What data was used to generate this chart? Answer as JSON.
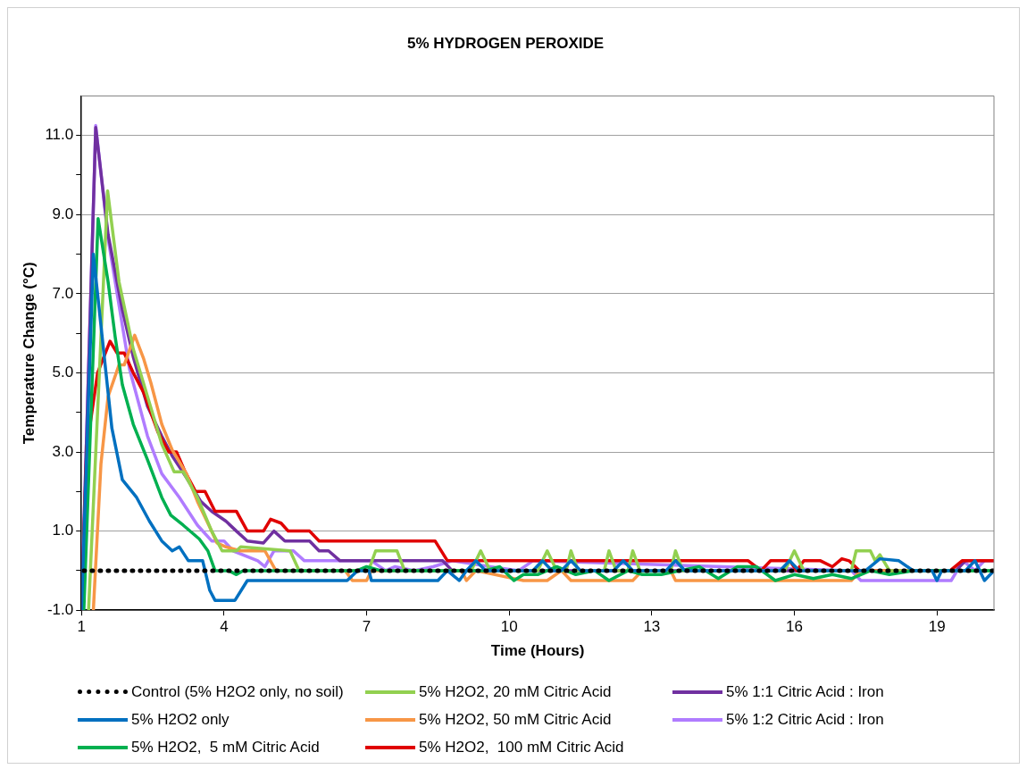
{
  "chart_data": {
    "type": "line",
    "title": "5% HYDROGEN PEROXIDE",
    "xlabel": "Time (Hours)",
    "ylabel": "Temperature Change (°C)",
    "xlim": [
      1,
      20.2
    ],
    "xticks": [
      1,
      4,
      7,
      10,
      13,
      16,
      19
    ],
    "ylim": [
      -1,
      12
    ],
    "yticks": [
      {
        "value": -1,
        "label": "-1.0"
      },
      {
        "value": 0,
        "label": null
      },
      {
        "value": 1,
        "label": "1.0"
      },
      {
        "value": 2,
        "label": null
      },
      {
        "value": 3,
        "label": "3.0"
      },
      {
        "value": 4,
        "label": null
      },
      {
        "value": 5,
        "label": "5.0"
      },
      {
        "value": 6,
        "label": null
      },
      {
        "value": 7,
        "label": "7.0"
      },
      {
        "value": 8,
        "label": null
      },
      {
        "value": 9,
        "label": "9.0"
      },
      {
        "value": 10,
        "label": null
      },
      {
        "value": 11,
        "label": "11.0"
      }
    ],
    "grid": "y",
    "legend": "bottom",
    "marker": "none",
    "series": [
      {
        "name": "Control (5% H2O2 only, no soil)",
        "color": "#000000",
        "line_style": "dotted",
        "x": [
          1.05,
          20.2
        ],
        "values": [
          0,
          0
        ]
      },
      {
        "name": "5% H2O2 only",
        "color": "#0070c0",
        "x": [
          1,
          1.25,
          1.64,
          1.86,
          2.16,
          2.43,
          2.69,
          2.91,
          3.06,
          3.25,
          3.55,
          3.7,
          3.81,
          4.23,
          4.49,
          6.59,
          6.81,
          7.05,
          7.1,
          8.5,
          8.7,
          8.95,
          9.1,
          9.3,
          9.5,
          10.5,
          10.7,
          10.9,
          11.1,
          11.3,
          11.5,
          12.2,
          12.4,
          12.6,
          13.3,
          13.5,
          13.7,
          15.7,
          15.9,
          16.1,
          17.5,
          17.8,
          18.2,
          18.5,
          18.9,
          19.0,
          19.1,
          19.6,
          19.8,
          20.0,
          20.2
        ],
        "values": [
          -1,
          8,
          3.6,
          2.3,
          1.85,
          1.25,
          0.75,
          0.5,
          0.6,
          0.25,
          0.25,
          -0.5,
          -0.75,
          -0.75,
          -0.25,
          -0.25,
          0,
          0,
          -0.25,
          -0.25,
          0,
          -0.25,
          0,
          0.25,
          0,
          0,
          0.25,
          0,
          0,
          0.25,
          0,
          0,
          0.25,
          0,
          0,
          0.25,
          0,
          0,
          0.25,
          0,
          0,
          0.3,
          0.25,
          0,
          0,
          -0.25,
          0,
          0,
          0.25,
          -0.25,
          0
        ]
      },
      {
        "name": "5% H2O2,  5 mM Citric Acid",
        "color": "#00b050",
        "x": [
          1.05,
          1.35,
          1.56,
          1.71,
          1.86,
          2.09,
          2.39,
          2.69,
          2.88,
          3.14,
          3.48,
          3.66,
          3.81,
          4.1,
          4.26,
          4.4,
          6.8,
          7.0,
          7.3,
          9.5,
          9.8,
          10.1,
          10.3,
          10.6,
          11,
          11.4,
          11.8,
          12.1,
          12.5,
          12.8,
          13.2,
          13.6,
          14,
          14.4,
          14.8,
          15.2,
          15.6,
          16.0,
          16.4,
          16.8,
          17.2,
          17.6,
          18.0,
          18.5,
          19.4,
          20.2
        ],
        "values": [
          -1,
          8.9,
          7.3,
          5.9,
          4.7,
          3.7,
          2.8,
          1.85,
          1.4,
          1.15,
          0.8,
          0.5,
          0,
          0,
          -0.1,
          0,
          0,
          0.1,
          0,
          0,
          0.1,
          -0.25,
          -0.1,
          -0.1,
          0.1,
          -0.1,
          0,
          -0.25,
          0,
          -0.1,
          -0.1,
          0,
          0.1,
          -0.2,
          0.1,
          0.1,
          -0.25,
          -0.1,
          -0.2,
          -0.1,
          -0.2,
          0,
          -0.1,
          0,
          0,
          0
        ]
      },
      {
        "name": "5% H2O2, 20 mM Citric Acid",
        "color": "#92d050",
        "x": [
          1.15,
          1.55,
          1.79,
          2.09,
          2.39,
          2.69,
          2.95,
          3.14,
          3.44,
          3.74,
          3.96,
          4.26,
          4.35,
          5.39,
          5.58,
          7.04,
          7.19,
          7.64,
          7.8,
          9.2,
          9.4,
          9.6,
          10.6,
          10.8,
          11.0,
          11.2,
          11.3,
          11.45,
          12.0,
          12.1,
          12.25,
          12.5,
          12.6,
          12.75,
          13.4,
          13.5,
          13.65,
          15.8,
          16.0,
          16.2,
          17.2,
          17.3,
          17.6,
          17.7,
          17.8,
          18.0,
          20.2
        ],
        "values": [
          -1,
          9.6,
          7.3,
          5.6,
          4.4,
          3.2,
          2.5,
          2.5,
          1.85,
          1,
          0.5,
          0.5,
          0.6,
          0.5,
          0,
          0,
          0.5,
          0.5,
          0,
          0,
          0.5,
          0,
          0,
          0.5,
          0,
          0,
          0.5,
          0,
          0,
          0.5,
          0,
          0,
          0.5,
          0,
          0,
          0.5,
          0,
          0,
          0.5,
          0,
          0,
          0.5,
          0.5,
          0.25,
          0.4,
          0,
          0
        ]
      },
      {
        "name": "5% H2O2, 50 mM Citric Acid",
        "color": "#f79646",
        "x": [
          1.25,
          1.41,
          1.56,
          1.79,
          1.9,
          2.12,
          2.31,
          2.46,
          2.69,
          2.91,
          3.21,
          3.44,
          3.7,
          3.85,
          4.04,
          4.34,
          4.86,
          5.09,
          6.55,
          6.7,
          7.0,
          7.1,
          9.0,
          9.1,
          9.3,
          10.3,
          10.8,
          11.1,
          11.3,
          11.8,
          12.6,
          12.8,
          13.4,
          13.5,
          17.2,
          17.4,
          20.2
        ],
        "values": [
          -1,
          2.7,
          4.4,
          5.2,
          5.2,
          5.95,
          5.35,
          4.75,
          3.7,
          3.05,
          2.45,
          1.75,
          1.1,
          0.7,
          0.6,
          0.5,
          0.5,
          0,
          0,
          -0.25,
          -0.25,
          0,
          0,
          -0.25,
          0,
          -0.25,
          -0.25,
          0,
          -0.25,
          -0.25,
          -0.25,
          0,
          0,
          -0.25,
          -0.25,
          0,
          0
        ]
      },
      {
        "name": "5% H2O2,  100 mM Citric Acid",
        "color": "#e00000",
        "x": [
          1,
          1.11,
          1.34,
          1.6,
          1.75,
          1.9,
          2.09,
          2.31,
          2.61,
          2.84,
          3.0,
          3.18,
          3.4,
          3.6,
          3.81,
          4.26,
          4.49,
          4.83,
          4.98,
          5.2,
          5.35,
          5.8,
          6.0,
          8.44,
          8.7,
          15.03,
          15.3,
          15.5,
          15.9,
          16.05,
          16.2,
          16.55,
          16.8,
          17.0,
          17.15,
          17.37,
          19.28,
          19.53,
          20.2
        ],
        "values": [
          -1,
          3.1,
          5,
          5.8,
          5.5,
          5.5,
          5,
          4.5,
          3.5,
          3,
          3,
          2.5,
          2,
          2,
          1.5,
          1.5,
          1,
          1,
          1.3,
          1.2,
          1,
          1,
          0.75,
          0.75,
          0.25,
          0.25,
          0,
          0.25,
          0.25,
          0,
          0.25,
          0.25,
          0.1,
          0.3,
          0.25,
          0,
          0,
          0.25,
          0.25
        ]
      },
      {
        "name": "5% 1:1 Citric Acid : Iron",
        "color": "#7030a0",
        "x": [
          1,
          1.3,
          1.56,
          1.86,
          2.09,
          2.39,
          2.69,
          2.91,
          3.21,
          3.51,
          3.74,
          4.04,
          4.26,
          4.49,
          4.83,
          5.05,
          5.28,
          5.8,
          6.0,
          6.2,
          6.44,
          8.6,
          8.8,
          19.4,
          19.6,
          20.2
        ],
        "values": [
          -1,
          11.2,
          8.5,
          6.6,
          5.4,
          4.15,
          3.4,
          2.9,
          2.35,
          1.75,
          1.5,
          1.25,
          1,
          0.75,
          0.7,
          1,
          0.75,
          0.75,
          0.5,
          0.5,
          0.25,
          0.25,
          0,
          0,
          0.25,
          0.25
        ]
      },
      {
        "name": "5% 1:2 Citric Acid : Iron",
        "color": "#b07cff",
        "x": [
          1,
          1.3,
          1.56,
          2.01,
          2.39,
          2.69,
          3.06,
          3.44,
          3.74,
          4.0,
          4.19,
          4.71,
          4.86,
          5.05,
          5.46,
          5.69,
          7.1,
          7.4,
          7.6,
          8.0,
          8.4,
          8.8,
          9.6,
          10.2,
          10.5,
          17.2,
          17.4,
          19.3,
          19.55,
          19.8,
          20.0
        ],
        "values": [
          -1,
          11.25,
          8.4,
          5.1,
          3.4,
          2.45,
          1.85,
          1.15,
          0.75,
          0.75,
          0.5,
          0.25,
          0.1,
          0.5,
          0.5,
          0.25,
          0.25,
          0,
          0.1,
          0,
          0.1,
          0.25,
          0.1,
          0,
          0.25,
          0,
          -0.25,
          -0.25,
          0.25,
          0,
          0.25
        ]
      }
    ]
  }
}
